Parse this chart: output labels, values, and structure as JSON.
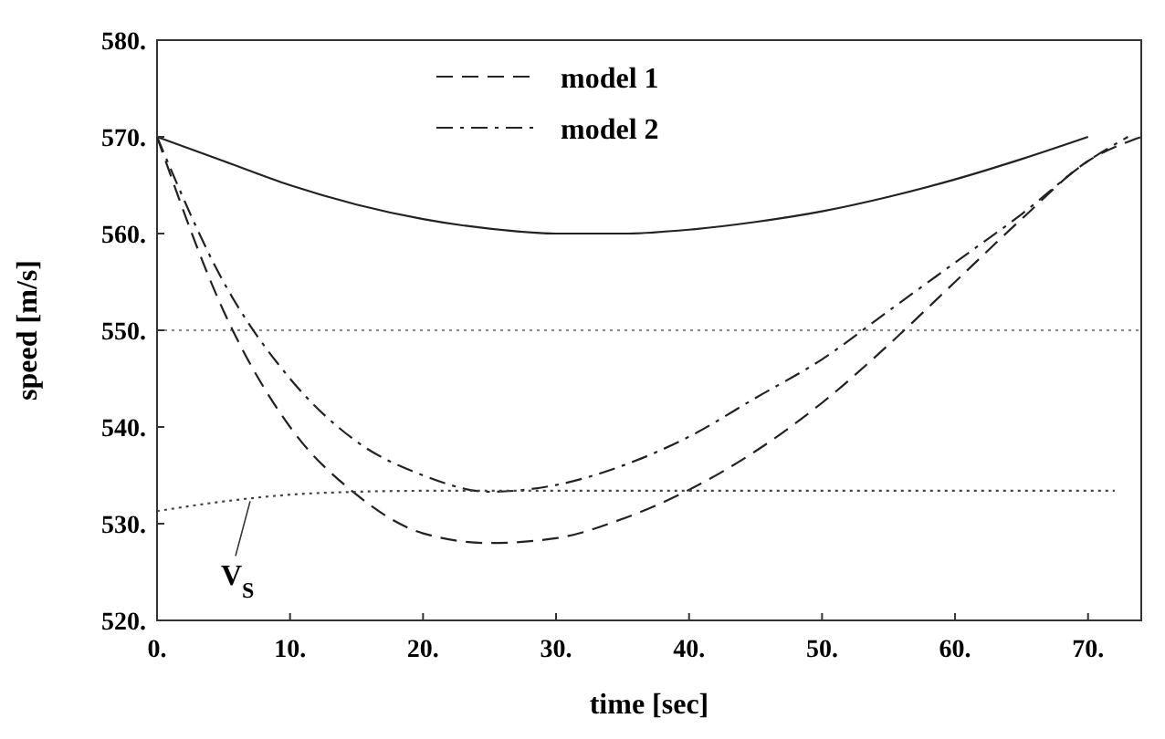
{
  "chart_data": {
    "type": "line",
    "xlabel": "time [sec]",
    "ylabel": "speed [m/s]",
    "xlim": [
      0,
      74
    ],
    "ylim": [
      520,
      580
    ],
    "xticks": [
      {
        "value": 0,
        "label": "0."
      },
      {
        "value": 10,
        "label": "10."
      },
      {
        "value": 20,
        "label": "20."
      },
      {
        "value": 30,
        "label": "30."
      },
      {
        "value": 40,
        "label": "40."
      },
      {
        "value": 50,
        "label": "50."
      },
      {
        "value": 60,
        "label": "60."
      },
      {
        "value": 70,
        "label": "70."
      }
    ],
    "yticks": [
      {
        "value": 520,
        "label": "520."
      },
      {
        "value": 530,
        "label": "530."
      },
      {
        "value": 540,
        "label": "540."
      },
      {
        "value": 550,
        "label": "550."
      },
      {
        "value": 560,
        "label": "560."
      },
      {
        "value": 570,
        "label": "570."
      },
      {
        "value": 580,
        "label": "580."
      }
    ],
    "legend": "top",
    "grid": false,
    "series": [
      {
        "color": "#222222",
        "line_style": "solid",
        "x": [
          0,
          5,
          10,
          15,
          20,
          25,
          30,
          35,
          40,
          45,
          50,
          55,
          60,
          65,
          70
        ],
        "values": [
          570,
          567.5,
          565,
          563,
          561.5,
          560.5,
          560,
          560,
          560.4,
          561.2,
          562.3,
          563.8,
          565.6,
          567.7,
          570
        ]
      },
      {
        "name": "model 1",
        "color": "#222222",
        "line_style": "dashed",
        "x": [
          0,
          5,
          10,
          15,
          20,
          25,
          30,
          35,
          40,
          45,
          50,
          55,
          60,
          65,
          70,
          74
        ],
        "values": [
          570,
          552,
          540,
          533,
          529,
          528,
          528.5,
          530.5,
          533.5,
          537.5,
          542.5,
          548.5,
          555,
          561.5,
          567.5,
          570
        ]
      },
      {
        "name": "model 2",
        "color": "#222222",
        "line_style": "dashdot",
        "x": [
          0,
          5,
          10,
          15,
          20,
          25,
          30,
          35,
          40,
          45,
          50,
          55,
          60,
          65,
          70,
          73
        ],
        "values": [
          570,
          555,
          545,
          538.5,
          535,
          533.3,
          534,
          536,
          539,
          543,
          547,
          552,
          557,
          562,
          567.5,
          570
        ]
      },
      {
        "color": "#444444",
        "line_style": "dotted",
        "x": [
          0,
          5,
          10,
          15,
          20,
          30,
          72
        ],
        "values": [
          531.3,
          532.3,
          533,
          533.3,
          533.4,
          533.4,
          533.4
        ]
      }
    ],
    "ref_lines": [
      {
        "axis": "y",
        "value": 550,
        "color": "#888888",
        "line_style": "dotted"
      }
    ],
    "annotations": [
      {
        "text": "V$_{S}$",
        "x": 7,
        "y": 532.7
      }
    ]
  }
}
